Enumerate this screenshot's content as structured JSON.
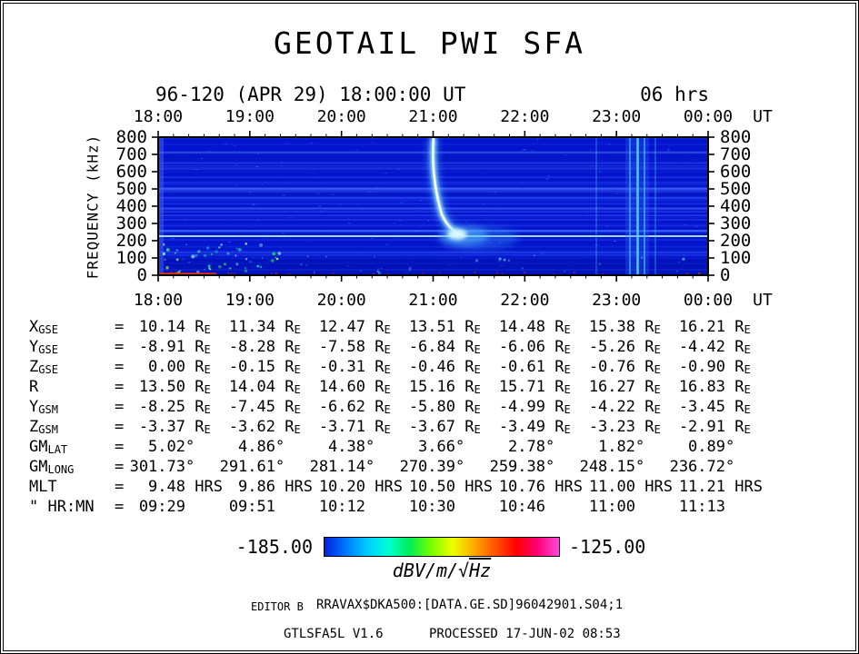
{
  "title": "GEOTAIL PWI SFA",
  "header": {
    "range": "96-120 (APR 29) 18:00:00 UT",
    "duration": "06 hrs"
  },
  "time_axis": {
    "labels": [
      "18:00",
      "19:00",
      "20:00",
      "21:00",
      "22:00",
      "23:00",
      "00:00"
    ],
    "unit": "UT"
  },
  "freq_axis": {
    "label": "FREQUENCY (kHz)",
    "ticks": [
      "800",
      "700",
      "600",
      "500",
      "400",
      "300",
      "200",
      "100",
      "0"
    ]
  },
  "ephemeris": {
    "rows": [
      {
        "main": "X",
        "sub": "GSE",
        "eq": "=",
        "unit": "RE",
        "values": [
          "10.14",
          "11.34",
          "12.47",
          "13.51",
          "14.48",
          "15.38",
          "16.21"
        ]
      },
      {
        "main": "Y",
        "sub": "GSE",
        "eq": "=",
        "unit": "RE",
        "values": [
          "-8.91",
          "-8.28",
          "-7.58",
          "-6.84",
          "-6.06",
          "-5.26",
          "-4.42"
        ]
      },
      {
        "main": "Z",
        "sub": "GSE",
        "eq": "=",
        "unit": "RE",
        "values": [
          "0.00",
          "-0.15",
          "-0.31",
          "-0.46",
          "-0.61",
          "-0.76",
          "-0.90"
        ]
      },
      {
        "main": "R",
        "sub": "",
        "eq": "=",
        "unit": "RE",
        "values": [
          "13.50",
          "14.04",
          "14.60",
          "15.16",
          "15.71",
          "16.27",
          "16.83"
        ]
      },
      {
        "main": "Y",
        "sub": "GSM",
        "eq": "=",
        "unit": "RE",
        "values": [
          "-8.25",
          "-7.45",
          "-6.62",
          "-5.80",
          "-4.99",
          "-4.22",
          "-3.45"
        ]
      },
      {
        "main": "Z",
        "sub": "GSM",
        "eq": "=",
        "unit": "RE",
        "values": [
          "-3.37",
          "-3.62",
          "-3.71",
          "-3.67",
          "-3.49",
          "-3.23",
          "-2.91"
        ]
      },
      {
        "main": "GM",
        "sub": "LAT",
        "eq": "=",
        "unit": "°",
        "values": [
          "5.02",
          "4.86",
          "4.38",
          "3.66",
          "2.78",
          "1.82",
          "0.89"
        ]
      },
      {
        "main": "GM",
        "sub": "LONG",
        "eq": "=",
        "unit": "°",
        "values": [
          "301.73",
          "291.61",
          "281.14",
          "270.39",
          "259.38",
          "248.15",
          "236.72"
        ]
      },
      {
        "main": "MLT",
        "sub": "",
        "eq": "=",
        "unit": "HRS",
        "values": [
          "9.48",
          "9.86",
          "10.20",
          "10.50",
          "10.76",
          "11.00",
          "11.21"
        ]
      },
      {
        "main": "\" HR:MN",
        "sub": "",
        "eq": "=",
        "unit": "",
        "values": [
          "09:29",
          "09:51",
          "10:12",
          "10:30",
          "10:46",
          "11:00",
          "11:13"
        ]
      }
    ]
  },
  "colorbar": {
    "min": "-185.00",
    "max": "-125.00",
    "unit": "dBV/m/√Hz",
    "gradient": [
      "#0022dd",
      "#0077ff",
      "#00ccff",
      "#00ffd5",
      "#00ee55",
      "#77ff00",
      "#eeff00",
      "#ffaa00",
      "#ff5500",
      "#ff0000",
      "#ff0077",
      "#ff4bd8"
    ]
  },
  "footer": {
    "editor": "EDITOR B",
    "file": "RRAVAX$DKA500:[DATA.GE.SD]96042901.S04;1",
    "program": "GTLSFA5L V1.6",
    "processed": "PROCESSED 17-JUN-02  08:53"
  },
  "colors": {
    "spectrogram_bg": "#0414cc",
    "axis": "#000000",
    "text": "#000000"
  },
  "chart_data": [
    {
      "type": "heatmap",
      "title": "GEOTAIL PWI SFA",
      "subtitle": "96-120 (APR 29) 18:00:00 UT",
      "duration": "06 hrs",
      "x": {
        "label": "UT",
        "ticks": [
          "18:00",
          "19:00",
          "20:00",
          "21:00",
          "22:00",
          "23:00",
          "00:00"
        ]
      },
      "y": {
        "label": "FREQUENCY (kHz)",
        "range": [
          0,
          800
        ],
        "ticks": [
          0,
          100,
          200,
          300,
          400,
          500,
          600,
          700,
          800
        ]
      },
      "z": {
        "label": "dBV/m/√Hz",
        "range": [
          -185.0,
          -125.0
        ]
      },
      "grid": false,
      "legend_position": "bottom",
      "features": [
        {
          "desc": "broadband low-intensity blue background noise across full 0-800 kHz band for entire interval"
        },
        {
          "desc": "intense narrowband emission descending from 800 kHz at ~21:00 down to ~200 kHz by ~21:15, white/cyan core"
        },
        {
          "desc": "diffuse cyan enhancement around 150-250 kHz near 21:10-21:30"
        },
        {
          "desc": "persistent horizontal interference line near 220-250 kHz across full interval"
        },
        {
          "desc": "several faint horizontal interference lines at various frequencies"
        },
        {
          "desc": "vertical broadband bursts near 23:05-23:20 spanning 0-800 kHz"
        },
        {
          "desc": "red/orange intensification at lowest frequencies (~0 kHz) from 18:00 to ~18:40"
        },
        {
          "desc": "green/cyan speckle below ~150 kHz concentrated 18:00-19:00"
        }
      ]
    },
    {
      "type": "table",
      "categories": [
        "18:00",
        "19:00",
        "20:00",
        "21:00",
        "22:00",
        "23:00",
        "00:00"
      ],
      "series": [
        {
          "name": "XGSE",
          "unit": "RE",
          "values": [
            10.14,
            11.34,
            12.47,
            13.51,
            14.48,
            15.38,
            16.21
          ]
        },
        {
          "name": "YGSE",
          "unit": "RE",
          "values": [
            -8.91,
            -8.28,
            -7.58,
            -6.84,
            -6.06,
            -5.26,
            -4.42
          ]
        },
        {
          "name": "ZGSE",
          "unit": "RE",
          "values": [
            0.0,
            -0.15,
            -0.31,
            -0.46,
            -0.61,
            -0.76,
            -0.9
          ]
        },
        {
          "name": "R",
          "unit": "RE",
          "values": [
            13.5,
            14.04,
            14.6,
            15.16,
            15.71,
            16.27,
            16.83
          ]
        },
        {
          "name": "YGSM",
          "unit": "RE",
          "values": [
            -8.25,
            -7.45,
            -6.62,
            -5.8,
            -4.99,
            -4.22,
            -3.45
          ]
        },
        {
          "name": "ZGSM",
          "unit": "RE",
          "values": [
            -3.37,
            -3.62,
            -3.71,
            -3.67,
            -3.49,
            -3.23,
            -2.91
          ]
        },
        {
          "name": "GMLAT",
          "unit": "°",
          "values": [
            5.02,
            4.86,
            4.38,
            3.66,
            2.78,
            1.82,
            0.89
          ]
        },
        {
          "name": "GMLONG",
          "unit": "°",
          "values": [
            301.73,
            291.61,
            281.14,
            270.39,
            259.38,
            248.15,
            236.72
          ]
        },
        {
          "name": "MLT",
          "unit": "HRS",
          "values": [
            9.48,
            9.86,
            10.2,
            10.5,
            10.76,
            11.0,
            11.21
          ]
        },
        {
          "name": "MLT HR:MN",
          "unit": "",
          "values": [
            "09:29",
            "09:51",
            "10:12",
            "10:30",
            "10:46",
            "11:00",
            "11:13"
          ]
        }
      ]
    }
  ]
}
